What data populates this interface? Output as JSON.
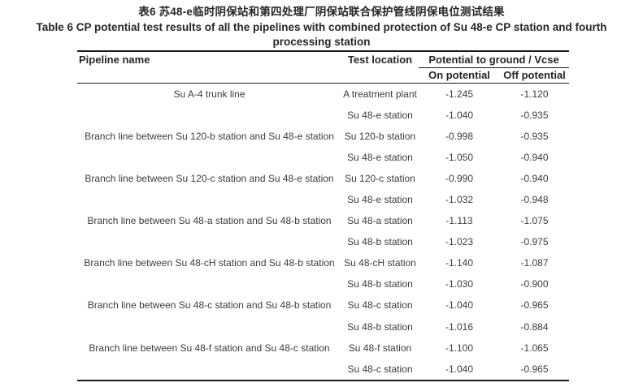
{
  "page": {
    "title_zh": "表6 苏48-e临时阴保站和第四处理厂阴保站联合保护管线阴保电位测试结果",
    "title_en_line1": "Table 6 CP potential test results of all the pipelines with combined protection of Su 48-e CP station and fourth",
    "title_en_line2": "processing station"
  },
  "table": {
    "headers": {
      "pipeline_name": "Pipeline name",
      "test_location": "Test location",
      "potential_group": "Potential to ground / Vcse",
      "on_potential": "On potential",
      "off_potential": "Off potential"
    },
    "rows": [
      {
        "pipeline": "Su A-4 trunk line",
        "location": "A treatment plant",
        "on": "-1.245",
        "off": "-1.120"
      },
      {
        "pipeline": "",
        "location": "Su 48-e station",
        "on": "-1.040",
        "off": "-0.935"
      },
      {
        "pipeline": "Branch line between Su 120-b station and Su 48-e station",
        "location": "Su 120-b station",
        "on": "-0.998",
        "off": "-0.935"
      },
      {
        "pipeline": "",
        "location": "Su 48-e station",
        "on": "-1.050",
        "off": "-0.940"
      },
      {
        "pipeline": "Branch line between Su 120-c station and Su 48-e station",
        "location": "Su 120-c station",
        "on": "-0.990",
        "off": "-0.940"
      },
      {
        "pipeline": "",
        "location": "Su 48-e station",
        "on": "-1.032",
        "off": "-0.948"
      },
      {
        "pipeline": "Branch line between Su 48-a station and Su 48-b station",
        "location": "Su 48-a station",
        "on": "-1.113",
        "off": "-1.075"
      },
      {
        "pipeline": "",
        "location": "Su 48-b station",
        "on": "-1.023",
        "off": "-0.975"
      },
      {
        "pipeline": "Branch line between Su 48-cH station and Su 48-b station",
        "location": "Su 48-cH station",
        "on": "-1.140",
        "off": "-1.087"
      },
      {
        "pipeline": "",
        "location": "Su 48-b station",
        "on": "-1.030",
        "off": "-0.900"
      },
      {
        "pipeline": "Branch line between Su 48-c station and Su 48-b station",
        "location": "Su 48-c station",
        "on": "-1.040",
        "off": "-0.965"
      },
      {
        "pipeline": "",
        "location": "Su 48-b station",
        "on": "-1.016",
        "off": "-0.884"
      },
      {
        "pipeline": "Branch line between Su 48-f station and Su 48-c station",
        "location": "Su 48-f station",
        "on": "-1.100",
        "off": "-1.065"
      },
      {
        "pipeline": "",
        "location": "Su 48-c station",
        "on": "-1.040",
        "off": "-0.965"
      }
    ]
  }
}
